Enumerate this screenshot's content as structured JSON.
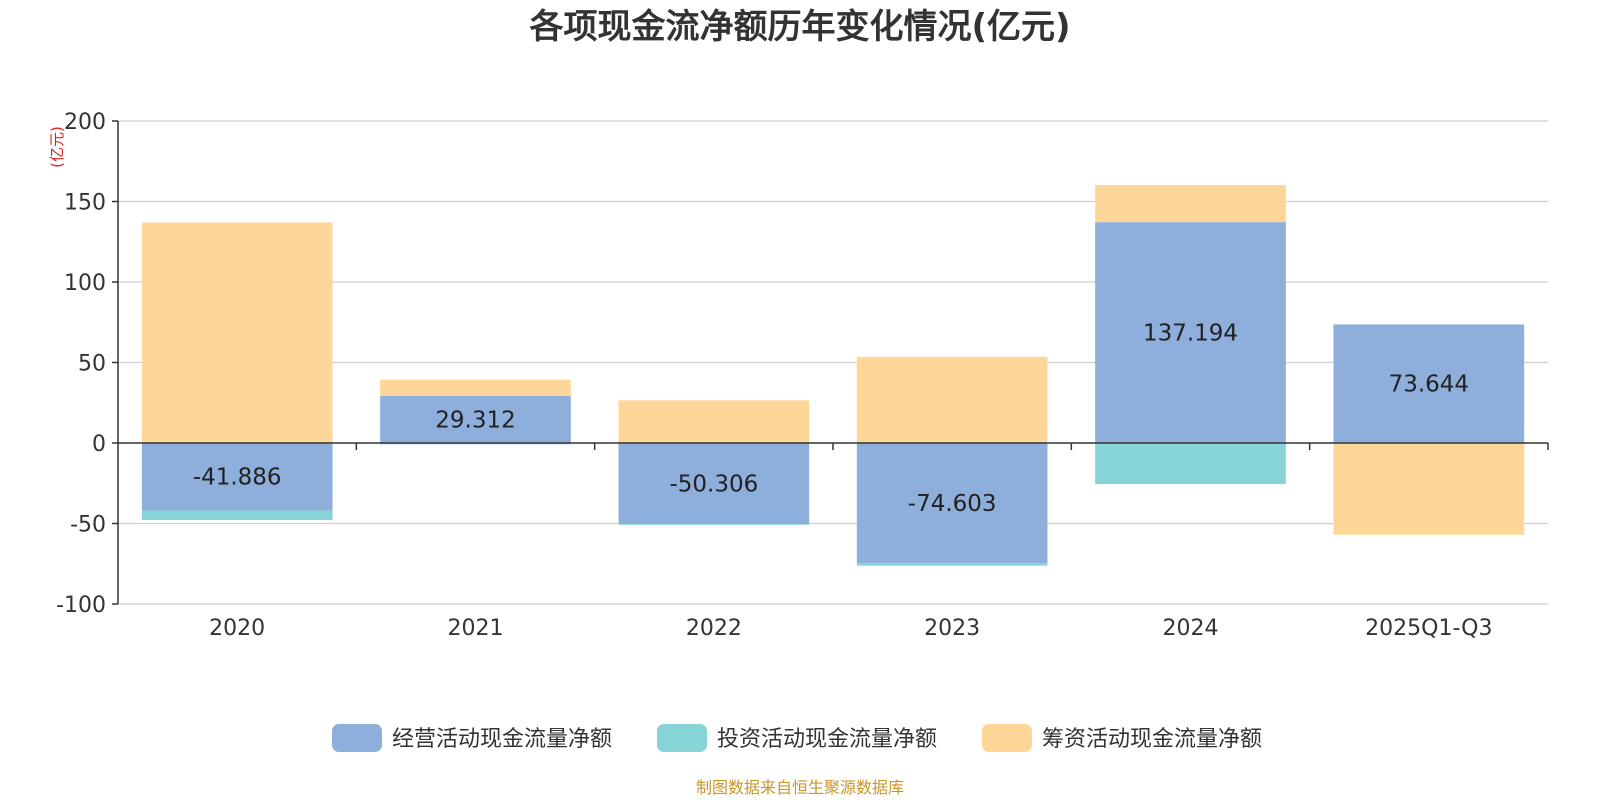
{
  "chart_data": {
    "type": "bar",
    "stacked": true,
    "title": "各项现金流净额历年变化情况(亿元)",
    "unit_label": "(亿元)",
    "categories": [
      "2020",
      "2021",
      "2022",
      "2023",
      "2024",
      "2025Q1-Q3"
    ],
    "ylim": [
      -100,
      200
    ],
    "yticks": [
      -100,
      -50,
      0,
      50,
      100,
      150,
      200
    ],
    "grid": true,
    "legend_position": "bottom",
    "series": [
      {
        "name": "经营活动现金流量净额",
        "color": "#8eaedb",
        "values": [
          -41.886,
          29.312,
          -50.306,
          -74.603,
          137.194,
          73.644
        ],
        "labels": [
          "-41.886",
          "29.312",
          "-50.306",
          "-74.603",
          "137.194",
          "73.644"
        ]
      },
      {
        "name": "投资活动现金流量净额",
        "color": "#86d4d6",
        "values": [
          -6.0,
          -0.8,
          -0.5,
          -1.6,
          -25.5,
          0.0
        ]
      },
      {
        "name": "筹资活动现金流量净额",
        "color": "#fed798",
        "values": [
          137.0,
          10.0,
          26.5,
          53.5,
          23.0,
          -57.0
        ]
      }
    ]
  },
  "source": "制图数据来自恒生聚源数据库"
}
